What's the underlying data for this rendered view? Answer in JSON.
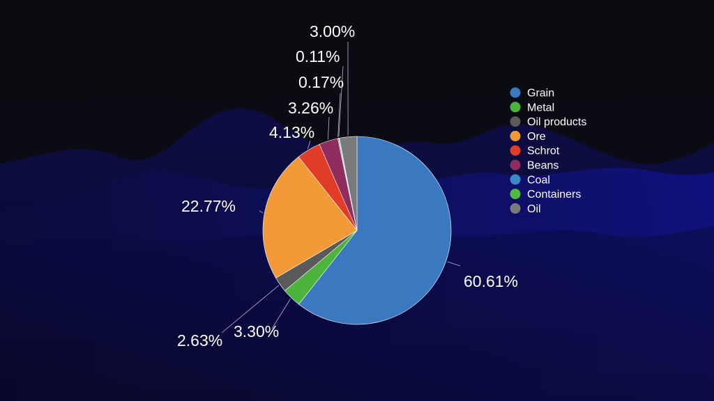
{
  "chart_data": {
    "type": "pie",
    "categories": [
      "Grain",
      "Metal",
      "Oil products",
      "Ore",
      "Schrot",
      "Beans",
      "Coal",
      "Containers",
      "Oil"
    ],
    "values": [
      60.61,
      3.3,
      2.63,
      22.77,
      4.13,
      3.26,
      0.17,
      0.11,
      3.0
    ],
    "labels": [
      "60.61%",
      "3.30%",
      "2.63%",
      "22.77%",
      "4.13%",
      "3.26%",
      "0.17%",
      "0.11%",
      "3.00%"
    ],
    "colors": [
      "#3a78bf",
      "#4cb43c",
      "#5a5a5a",
      "#f29a38",
      "#e03c28",
      "#8e2d5e",
      "#3a86c8",
      "#52b840",
      "#7a7a7a"
    ],
    "start_angle_deg": 0,
    "direction": "clockwise",
    "legend_position": "right"
  }
}
